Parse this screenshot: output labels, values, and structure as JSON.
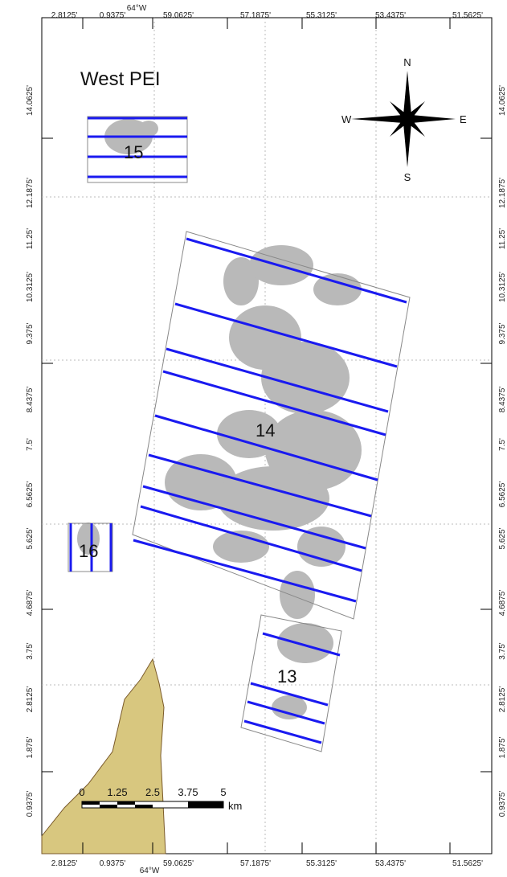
{
  "map": {
    "title": "West PEI",
    "top_labels": [
      "2.8125'",
      "0.9375'",
      "64°W",
      "59.0625'",
      "57.1875'",
      "55.3125'",
      "53.4375'",
      "51.5625'"
    ],
    "bottom_labels": [
      "2.8125'",
      "0.9375'",
      "59.0625'",
      "57.1875'",
      "55.3125'",
      "53.4375'",
      "51.5625'"
    ],
    "bottom_meridian": "64°W",
    "left_labels": [
      "14.0625'",
      "12.1875'",
      "11.25'",
      "10.3125'",
      "9.375'",
      "8.4375'",
      "7.5'",
      "6.5625'",
      "5.625'",
      "4.6875'",
      "3.75'",
      "2.8125'",
      "1.875'",
      "0.9375'"
    ],
    "right_labels": [
      "14.0625'",
      "12.1875'",
      "11.25'",
      "10.3125'",
      "9.375'",
      "8.4375'",
      "7.5'",
      "6.5625'",
      "5.625'",
      "4.6875'",
      "3.75'",
      "2.8125'",
      "1.875'",
      "0.9375'"
    ],
    "compass": {
      "north": "N",
      "south": "S",
      "east": "E",
      "west": "W"
    },
    "blocks": [
      "15",
      "14",
      "13",
      "16"
    ],
    "scale_bar": {
      "ticks": [
        "0",
        "1.25",
        "2.5",
        "3.75",
        "5"
      ],
      "unit": "km"
    }
  }
}
